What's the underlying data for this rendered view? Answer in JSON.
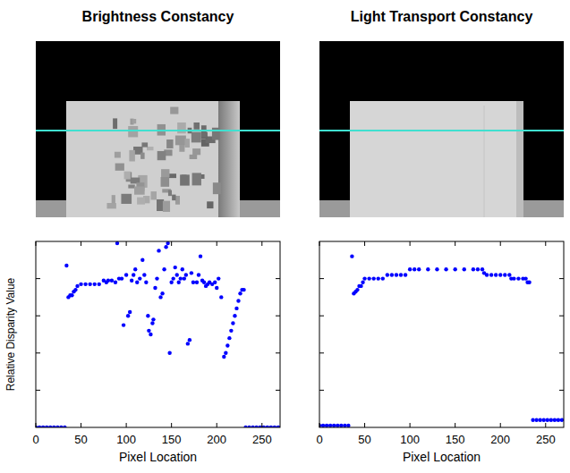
{
  "chart_data": [
    {
      "type": "scatter",
      "title": "Brightness Constancy",
      "x_label": "Pixel Location",
      "y_label": "Relative Disparity Value",
      "color": "#0000ff",
      "marker": "circle",
      "grid": false,
      "tick_labels": "x",
      "xlim": [
        0,
        270
      ],
      "xticks": [
        0,
        50,
        100,
        150,
        200,
        250
      ],
      "ylim": [
        0,
        1
      ],
      "yticks": [
        0.2,
        0.4,
        0.6,
        0.8
      ],
      "x": [
        0,
        4,
        8,
        12,
        16,
        20,
        24,
        28,
        32,
        34,
        36,
        38,
        40,
        42,
        44,
        46,
        50,
        55,
        60,
        65,
        70,
        75,
        78,
        80,
        84,
        88,
        90,
        92,
        95,
        97,
        100,
        102,
        104,
        106,
        108,
        110,
        112,
        115,
        118,
        120,
        122,
        124,
        125,
        127,
        129,
        130,
        132,
        134,
        136,
        138,
        140,
        142,
        144,
        146,
        148,
        150,
        152,
        154,
        156,
        158,
        160,
        162,
        164,
        166,
        168,
        170,
        172,
        174,
        178,
        180,
        182,
        184,
        186,
        188,
        190,
        192,
        195,
        198,
        200,
        202,
        205,
        208,
        210,
        212,
        214,
        216,
        218,
        220,
        222,
        224,
        226,
        228,
        230,
        232,
        236,
        240,
        244,
        248,
        252,
        256,
        260,
        264,
        268
      ],
      "values": [
        0,
        0,
        0,
        0,
        0,
        0,
        0,
        0,
        0,
        0.87,
        0.7,
        0.71,
        0.71,
        0.73,
        0.74,
        0.76,
        0.77,
        0.77,
        0.77,
        0.77,
        0.77,
        0.79,
        0.78,
        0.79,
        0.79,
        0.78,
        0.99,
        0.8,
        0.8,
        0.55,
        0.82,
        0.6,
        0.62,
        0.79,
        0.82,
        0.85,
        0.78,
        0.8,
        0.9,
        0.82,
        0.78,
        0.6,
        0.52,
        0.5,
        0.56,
        0.58,
        0.75,
        0.8,
        0.95,
        0.7,
        0.72,
        0.85,
        0.97,
        0.99,
        0.4,
        0.78,
        0.8,
        0.86,
        0.82,
        0.78,
        0.8,
        0.85,
        0.8,
        0.82,
        0.45,
        0.47,
        0.83,
        0.78,
        0.78,
        0.82,
        0.92,
        0.79,
        0.78,
        0.76,
        0.77,
        0.78,
        0.77,
        0.78,
        0.75,
        0.8,
        0.7,
        0.38,
        0.4,
        0.44,
        0.48,
        0.52,
        0.56,
        0.6,
        0.64,
        0.68,
        0.72,
        0.74,
        0.74,
        0,
        0,
        0,
        0,
        0,
        0,
        0,
        0,
        0,
        0
      ]
    },
    {
      "type": "scatter",
      "title": "Light Transport Constancy",
      "x_label": "Pixel Location",
      "color": "#0000ff",
      "marker": "circle",
      "grid": false,
      "tick_labels": "x",
      "xlim": [
        0,
        270
      ],
      "xticks": [
        0,
        50,
        100,
        150,
        200,
        250
      ],
      "ylim": [
        0,
        1
      ],
      "yticks": [
        0.2,
        0.4,
        0.6,
        0.8
      ],
      "x": [
        0,
        4,
        8,
        12,
        16,
        20,
        24,
        28,
        32,
        36,
        38,
        40,
        42,
        44,
        46,
        48,
        50,
        55,
        60,
        65,
        70,
        75,
        80,
        85,
        90,
        95,
        100,
        105,
        110,
        120,
        130,
        140,
        150,
        160,
        170,
        175,
        180,
        182,
        185,
        190,
        195,
        200,
        205,
        210,
        212,
        215,
        220,
        225,
        228,
        230,
        232,
        236,
        240,
        244,
        248,
        252,
        256,
        260,
        264,
        268
      ],
      "values": [
        0.01,
        0.01,
        0.01,
        0.01,
        0.01,
        0.01,
        0.01,
        0.01,
        0.01,
        0.92,
        0.72,
        0.73,
        0.74,
        0.76,
        0.76,
        0.78,
        0.8,
        0.8,
        0.8,
        0.8,
        0.8,
        0.82,
        0.82,
        0.82,
        0.82,
        0.82,
        0.85,
        0.85,
        0.85,
        0.85,
        0.85,
        0.85,
        0.85,
        0.85,
        0.85,
        0.85,
        0.85,
        0.83,
        0.82,
        0.82,
        0.82,
        0.82,
        0.82,
        0.82,
        0.8,
        0.8,
        0.8,
        0.8,
        0.8,
        0.78,
        0.78,
        0.04,
        0.04,
        0.04,
        0.04,
        0.04,
        0.04,
        0.04,
        0.04,
        0.04
      ]
    }
  ]
}
